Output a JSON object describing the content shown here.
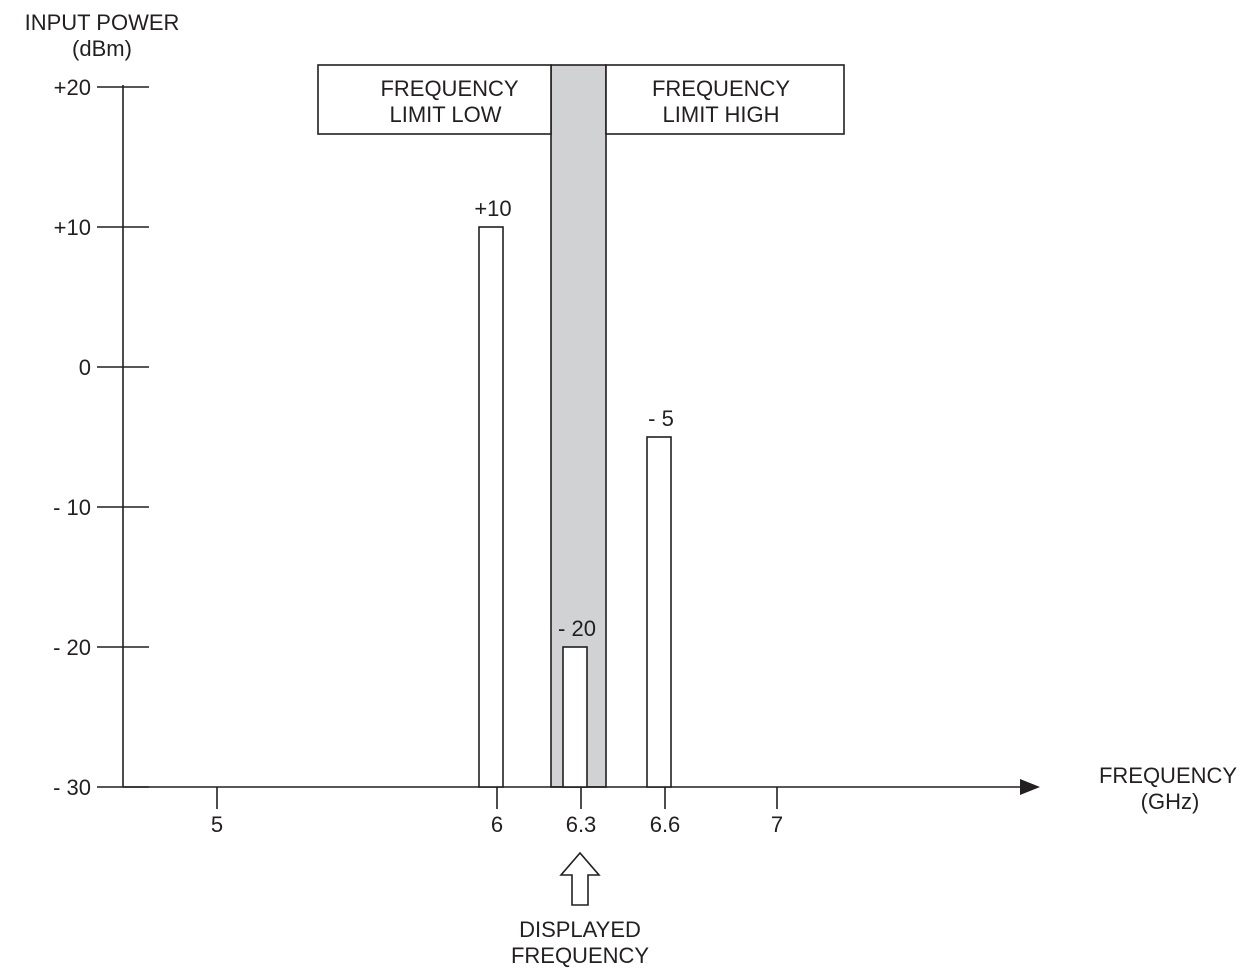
{
  "chart_data": {
    "type": "bar",
    "ylabel": [
      "INPUT POWER",
      "(dBm)"
    ],
    "xlabel": [
      "FREQUENCY",
      "(GHz)"
    ],
    "ylim": [
      -30,
      20
    ],
    "yticks": [
      20,
      10,
      0,
      -10,
      -20,
      -30
    ],
    "ytick_labels": [
      "+20",
      "+10",
      "0",
      "- 10",
      "- 20",
      "- 30"
    ],
    "xticks": [
      5,
      6,
      6.3,
      6.6,
      7
    ],
    "xtick_labels": [
      "5",
      "6",
      "6.3",
      "6.6",
      "7"
    ],
    "grid": false,
    "bars": [
      {
        "x": 6.0,
        "value": 10,
        "label": "+10"
      },
      {
        "x": 6.3,
        "value": -20,
        "label": "- 20"
      },
      {
        "x": 6.6,
        "value": -5,
        "label": "- 5"
      }
    ],
    "passband": {
      "x_low": 6.2,
      "x_high": 6.4
    },
    "limit_boxes": {
      "low": [
        "FREQUENCY",
        "LIMIT LOW"
      ],
      "high": [
        "FREQUENCY",
        "LIMIT HIGH"
      ]
    },
    "annotation": {
      "x": 6.3,
      "lines": [
        "DISPLAYED",
        "FREQUENCY"
      ]
    }
  }
}
